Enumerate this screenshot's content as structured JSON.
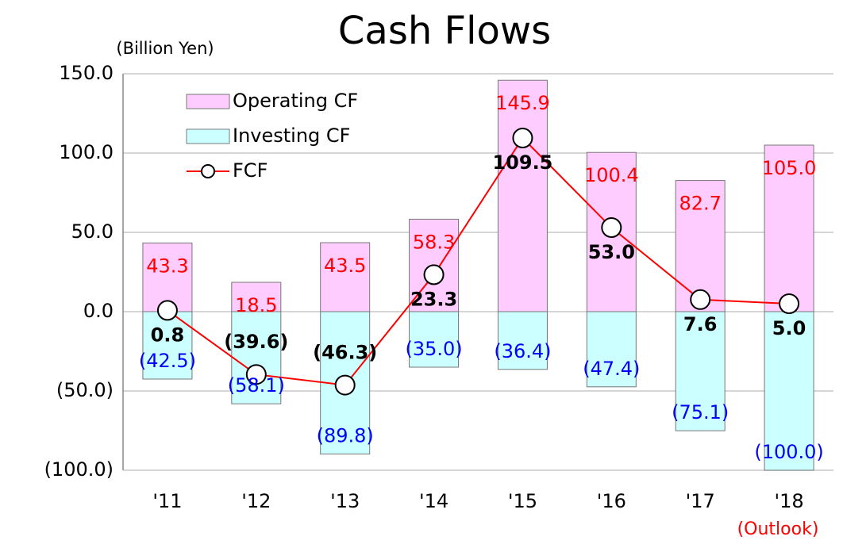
{
  "chart_data": {
    "type": "bar_line",
    "title": "Cash Flows",
    "y_label": "(Billion Yen)",
    "annotation": "(Outlook)",
    "categories": [
      "'11",
      "'12",
      "'13",
      "'14",
      "'15",
      "'16",
      "'17",
      "'18"
    ],
    "ylim": [
      -100,
      150
    ],
    "yticks": [
      {
        "value": -100,
        "label": "(100.0)"
      },
      {
        "value": -50,
        "label": "(50.0)"
      },
      {
        "value": 0,
        "label": "0.0"
      },
      {
        "value": 50,
        "label": "50.0"
      },
      {
        "value": 100,
        "label": "100.0"
      },
      {
        "value": 150,
        "label": "150.0"
      }
    ],
    "grid": true,
    "legend": "upper left",
    "series": [
      {
        "name": "Operating CF",
        "type": "bar",
        "color": "#ffccff",
        "label_color": "#ff0000",
        "values": [
          43.3,
          18.5,
          43.5,
          58.3,
          145.9,
          100.4,
          82.7,
          105.0
        ],
        "value_labels": [
          "43.3",
          "18.5",
          "43.5",
          "58.3",
          "145.9",
          "100.4",
          "82.7",
          "105.0"
        ]
      },
      {
        "name": "Investing CF",
        "type": "bar",
        "color": "#ccffff",
        "label_color": "#0000ff",
        "values": [
          -42.5,
          -58.1,
          -89.8,
          -35.0,
          -36.4,
          -47.4,
          -75.1,
          -100.0
        ],
        "value_labels": [
          "(42.5)",
          "(58.1)",
          "(89.8)",
          "(35.0)",
          "(36.4)",
          "(47.4)",
          "(75.1)",
          "(100.0)"
        ]
      },
      {
        "name": "FCF",
        "type": "line",
        "color": "#ff0000",
        "label_color": "#000000",
        "values": [
          0.8,
          -39.6,
          -46.3,
          23.3,
          109.5,
          53.0,
          7.6,
          5.0
        ],
        "value_labels": [
          "0.8",
          "(39.6)",
          "(46.3)",
          "23.3",
          "109.5",
          "53.0",
          "7.6",
          "5.0"
        ]
      }
    ]
  }
}
